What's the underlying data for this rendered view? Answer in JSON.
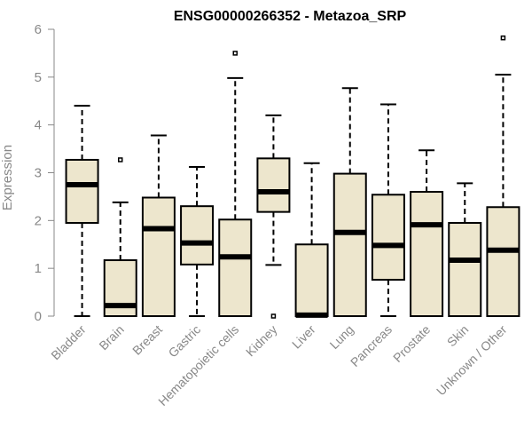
{
  "chart_data": {
    "type": "boxplot",
    "title": "ENSG00000266352 - Metazoa_SRP",
    "xlabel": "",
    "ylabel": "Expression",
    "ylim": [
      0,
      6
    ],
    "yticks": [
      0,
      1,
      2,
      3,
      4,
      5,
      6
    ],
    "box_fill": "#ede6cd",
    "line_color": "#000000",
    "categories": [
      "Bladder",
      "Brain",
      "Breast",
      "Gastric",
      "Hematopoietic cells",
      "Kidney",
      "Liver",
      "Lung",
      "Pancreas",
      "Prostate",
      "Skin",
      "Unknown / Other"
    ],
    "boxes": [
      {
        "min": 0,
        "q1": 1.95,
        "median": 2.75,
        "q3": 3.27,
        "max": 4.4,
        "outliers": []
      },
      {
        "min": 0,
        "q1": 0,
        "median": 0.22,
        "q3": 1.17,
        "max": 2.38,
        "outliers": [
          3.27
        ]
      },
      {
        "min": 0,
        "q1": 0,
        "median": 1.83,
        "q3": 2.48,
        "max": 3.78,
        "outliers": []
      },
      {
        "min": 0,
        "q1": 1.08,
        "median": 1.53,
        "q3": 2.3,
        "max": 3.12,
        "outliers": []
      },
      {
        "min": 0,
        "q1": 0,
        "median": 1.24,
        "q3": 2.02,
        "max": 4.98,
        "outliers": [
          5.5
        ]
      },
      {
        "min": 1.07,
        "q1": 2.18,
        "median": 2.6,
        "q3": 3.3,
        "max": 4.2,
        "outliers": [
          0
        ]
      },
      {
        "min": 0,
        "q1": 0,
        "median": 0.02,
        "q3": 1.5,
        "max": 3.2,
        "outliers": []
      },
      {
        "min": 0,
        "q1": 0,
        "median": 1.75,
        "q3": 2.98,
        "max": 4.77,
        "outliers": []
      },
      {
        "min": 0,
        "q1": 0.76,
        "median": 1.48,
        "q3": 2.54,
        "max": 4.43,
        "outliers": []
      },
      {
        "min": 0,
        "q1": 0,
        "median": 1.91,
        "q3": 2.6,
        "max": 3.47,
        "outliers": []
      },
      {
        "min": 0,
        "q1": 0,
        "median": 1.17,
        "q3": 1.95,
        "max": 2.78,
        "outliers": []
      },
      {
        "min": 0,
        "q1": 0,
        "median": 1.38,
        "q3": 2.28,
        "max": 5.05,
        "outliers": [
          5.82
        ]
      }
    ]
  }
}
